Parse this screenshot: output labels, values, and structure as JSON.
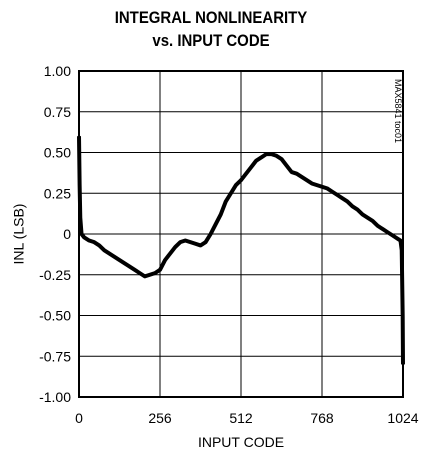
{
  "chart_data": {
    "type": "line",
    "title_line1": "INTEGRAL NONLINEARITY",
    "title_line2": "vs. INPUT CODE",
    "xlabel": "INPUT CODE",
    "ylabel": "INL (LSB)",
    "xlim": [
      0,
      1024
    ],
    "ylim": [
      -1.0,
      1.0
    ],
    "x_ticks": [
      {
        "value": 0,
        "label": "0"
      },
      {
        "value": 256,
        "label": "256"
      },
      {
        "value": 512,
        "label": "512"
      },
      {
        "value": 768,
        "label": "768"
      },
      {
        "value": 1024,
        "label": "1024"
      }
    ],
    "y_ticks": [
      {
        "value": 1.0,
        "label": "1.00"
      },
      {
        "value": 0.75,
        "label": "0.75"
      },
      {
        "value": 0.5,
        "label": "0.50"
      },
      {
        "value": 0.25,
        "label": "0.25"
      },
      {
        "value": 0,
        "label": "0"
      },
      {
        "value": -0.25,
        "label": "-0.25"
      },
      {
        "value": -0.5,
        "label": "-0.50"
      },
      {
        "value": -0.75,
        "label": "-0.75"
      },
      {
        "value": -1.0,
        "label": "-1.00"
      }
    ],
    "grid": true,
    "annotation": "MAX5841 toc01",
    "series": [
      {
        "color": "#000000",
        "x": [
          0,
          2,
          4,
          8,
          16,
          32,
          48,
          64,
          80,
          96,
          112,
          128,
          144,
          160,
          176,
          192,
          208,
          224,
          240,
          256,
          272,
          288,
          304,
          320,
          336,
          352,
          368,
          384,
          400,
          416,
          432,
          448,
          464,
          480,
          496,
          512,
          528,
          544,
          560,
          576,
          592,
          608,
          624,
          640,
          656,
          672,
          688,
          704,
          720,
          736,
          752,
          768,
          784,
          800,
          816,
          832,
          848,
          864,
          880,
          896,
          912,
          928,
          944,
          960,
          976,
          992,
          1008,
          1016,
          1020,
          1023,
          1024
        ],
        "y": [
          0.6,
          0.3,
          0.1,
          0.0,
          -0.02,
          -0.04,
          -0.05,
          -0.07,
          -0.1,
          -0.12,
          -0.14,
          -0.16,
          -0.18,
          -0.2,
          -0.22,
          -0.24,
          -0.26,
          -0.25,
          -0.24,
          -0.22,
          -0.16,
          -0.12,
          -0.08,
          -0.05,
          -0.04,
          -0.05,
          -0.06,
          -0.07,
          -0.05,
          0.0,
          0.06,
          0.12,
          0.2,
          0.25,
          0.3,
          0.33,
          0.37,
          0.41,
          0.45,
          0.47,
          0.49,
          0.49,
          0.48,
          0.46,
          0.42,
          0.38,
          0.37,
          0.35,
          0.33,
          0.31,
          0.3,
          0.29,
          0.28,
          0.26,
          0.24,
          0.22,
          0.2,
          0.17,
          0.15,
          0.12,
          0.1,
          0.08,
          0.05,
          0.03,
          0.01,
          -0.01,
          -0.03,
          -0.04,
          -0.1,
          -0.5,
          -0.8
        ]
      }
    ]
  }
}
